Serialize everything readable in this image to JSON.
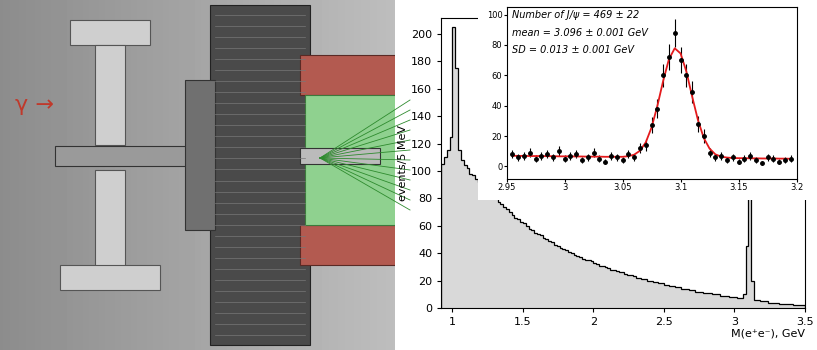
{
  "illustration": {
    "label": "γ →"
  },
  "chart_data": [
    {
      "type": "histogram",
      "xlabel": "M(e⁺e⁻), GeV",
      "ylabel": "events/5 MeV",
      "color": "#d9d9d9",
      "bins": [
        0.92,
        0.94,
        0.96,
        0.98,
        1.0,
        1.02,
        1.04,
        1.06,
        1.08,
        1.1,
        1.12,
        1.14,
        1.16,
        1.18,
        1.2,
        1.22,
        1.24,
        1.26,
        1.28,
        1.3,
        1.32,
        1.34,
        1.36,
        1.38,
        1.4,
        1.42,
        1.44,
        1.46,
        1.48,
        1.5,
        1.52,
        1.54,
        1.56,
        1.58,
        1.6,
        1.62,
        1.64,
        1.66,
        1.68,
        1.7,
        1.72,
        1.74,
        1.76,
        1.78,
        1.8,
        1.82,
        1.84,
        1.86,
        1.88,
        1.9,
        1.92,
        1.94,
        1.96,
        1.98,
        2.0,
        2.02,
        2.04,
        2.06,
        2.08,
        2.1,
        2.12,
        2.14,
        2.16,
        2.18,
        2.2,
        2.22,
        2.24,
        2.26,
        2.28,
        2.3,
        2.32,
        2.34,
        2.36,
        2.38,
        2.4,
        2.42,
        2.44,
        2.46,
        2.48,
        2.5,
        2.52,
        2.54,
        2.56,
        2.58,
        2.6,
        2.62,
        2.64,
        2.66,
        2.68,
        2.7,
        2.72,
        2.74,
        2.76,
        2.78,
        2.8,
        2.82,
        2.84,
        2.86,
        2.88,
        2.9,
        2.92,
        2.94,
        2.96,
        2.98,
        3.0,
        3.02,
        3.04,
        3.06,
        3.08,
        3.1,
        3.12,
        3.14,
        3.16,
        3.18,
        3.2,
        3.22,
        3.24,
        3.26,
        3.28,
        3.3,
        3.32,
        3.34,
        3.36,
        3.38,
        3.4,
        3.42,
        3.44,
        3.46,
        3.48,
        3.5
      ],
      "counts": [
        105,
        110,
        115,
        125,
        205,
        175,
        115,
        108,
        104,
        102,
        98,
        97,
        94,
        92,
        90,
        88,
        86,
        84,
        82,
        80,
        77,
        76,
        74,
        72,
        70,
        68,
        66,
        65,
        63,
        62,
        60,
        58,
        57,
        55,
        54,
        53,
        51,
        50,
        49,
        48,
        46,
        45,
        44,
        43,
        42,
        41,
        40,
        39,
        38,
        37,
        36,
        35,
        35,
        34,
        33,
        32,
        31,
        31,
        30,
        29,
        28,
        28,
        27,
        26,
        26,
        25,
        24,
        24,
        23,
        22,
        22,
        21,
        21,
        20,
        20,
        19,
        19,
        18,
        18,
        17,
        17,
        16,
        16,
        15,
        15,
        14,
        14,
        14,
        13,
        13,
        12,
        12,
        12,
        11,
        11,
        11,
        10,
        10,
        10,
        9,
        9,
        9,
        8,
        8,
        8,
        7,
        7,
        10,
        45,
        80,
        20,
        6,
        6,
        5,
        5,
        5,
        4,
        4,
        4,
        4,
        3,
        3,
        3,
        3,
        3,
        2,
        2,
        2,
        2
      ],
      "xlim": [
        0.92,
        3.5
      ],
      "ylim": [
        0,
        212
      ],
      "xticks": [
        1,
        1.5,
        2,
        2.5,
        3,
        3.5
      ],
      "yticks": [
        0,
        20,
        40,
        60,
        80,
        100,
        120,
        140,
        160,
        180,
        200
      ]
    },
    {
      "type": "scatter",
      "annotations": [
        "Number of J/ψ = 469 ± 22",
        "mean = 3.096 ± 0.001 GeV",
        "SD = 0.013 ± 0.001 GeV"
      ],
      "x": [
        2.955,
        2.96,
        2.965,
        2.97,
        2.975,
        2.98,
        2.985,
        2.99,
        2.995,
        3.0,
        3.005,
        3.01,
        3.015,
        3.02,
        3.025,
        3.03,
        3.035,
        3.04,
        3.045,
        3.05,
        3.055,
        3.06,
        3.065,
        3.07,
        3.075,
        3.08,
        3.085,
        3.09,
        3.095,
        3.1,
        3.105,
        3.11,
        3.115,
        3.12,
        3.125,
        3.13,
        3.135,
        3.14,
        3.145,
        3.15,
        3.155,
        3.16,
        3.165,
        3.17,
        3.175,
        3.18,
        3.185,
        3.19,
        3.195
      ],
      "series": [
        {
          "type": "scatter",
          "color": "#000000",
          "marker": "o",
          "values": [
            8,
            6,
            7,
            9,
            5,
            7,
            8,
            6,
            10,
            5,
            7,
            8,
            4,
            6,
            9,
            5,
            3,
            7,
            6,
            4,
            8,
            6,
            12,
            14,
            27,
            38,
            60,
            72,
            88,
            70,
            60,
            49,
            28,
            20,
            9,
            6,
            7,
            4,
            6,
            3,
            5,
            7,
            4,
            2,
            6,
            5,
            3,
            4,
            5
          ],
          "errors": [
            2.8,
            2.4,
            2.6,
            3.0,
            2.2,
            2.6,
            2.8,
            2.4,
            3.2,
            2.2,
            2.6,
            2.8,
            2.0,
            2.4,
            3.0,
            2.2,
            1.7,
            2.6,
            2.4,
            2.0,
            2.8,
            2.4,
            3.5,
            3.7,
            5.2,
            6.2,
            7.7,
            8.5,
            9.4,
            8.4,
            7.7,
            7.0,
            5.3,
            4.5,
            3.0,
            2.4,
            2.6,
            2.0,
            2.4,
            1.7,
            2.2,
            2.6,
            2.0,
            1.4,
            2.4,
            2.2,
            1.7,
            2.0,
            2.2
          ]
        },
        {
          "type": "line",
          "color": "#e41a1c",
          "values": [
            7.0,
            6.9,
            6.9,
            6.8,
            6.8,
            6.8,
            6.7,
            6.7,
            6.6,
            6.6,
            6.6,
            6.5,
            6.5,
            6.4,
            6.4,
            6.4,
            6.3,
            6.3,
            6.3,
            6.3,
            6.7,
            7.7,
            10.3,
            15.8,
            25.6,
            39.8,
            56.3,
            70.7,
            77.8,
            74.4,
            62.5,
            46.0,
            30.5,
            18.7,
            11.7,
            7.9,
            6.4,
            5.8,
            5.5,
            5.4,
            5.4,
            5.3,
            5.3,
            5.2,
            5.2,
            5.2,
            5.1,
            5.1,
            5.0
          ]
        }
      ],
      "xlim": [
        2.95,
        3.2
      ],
      "ylim": [
        -8,
        105
      ],
      "xticks": [
        2.95,
        3,
        3.05,
        3.1,
        3.15,
        3.2
      ],
      "yticks": [
        0,
        20,
        40,
        60,
        80,
        100
      ]
    }
  ]
}
